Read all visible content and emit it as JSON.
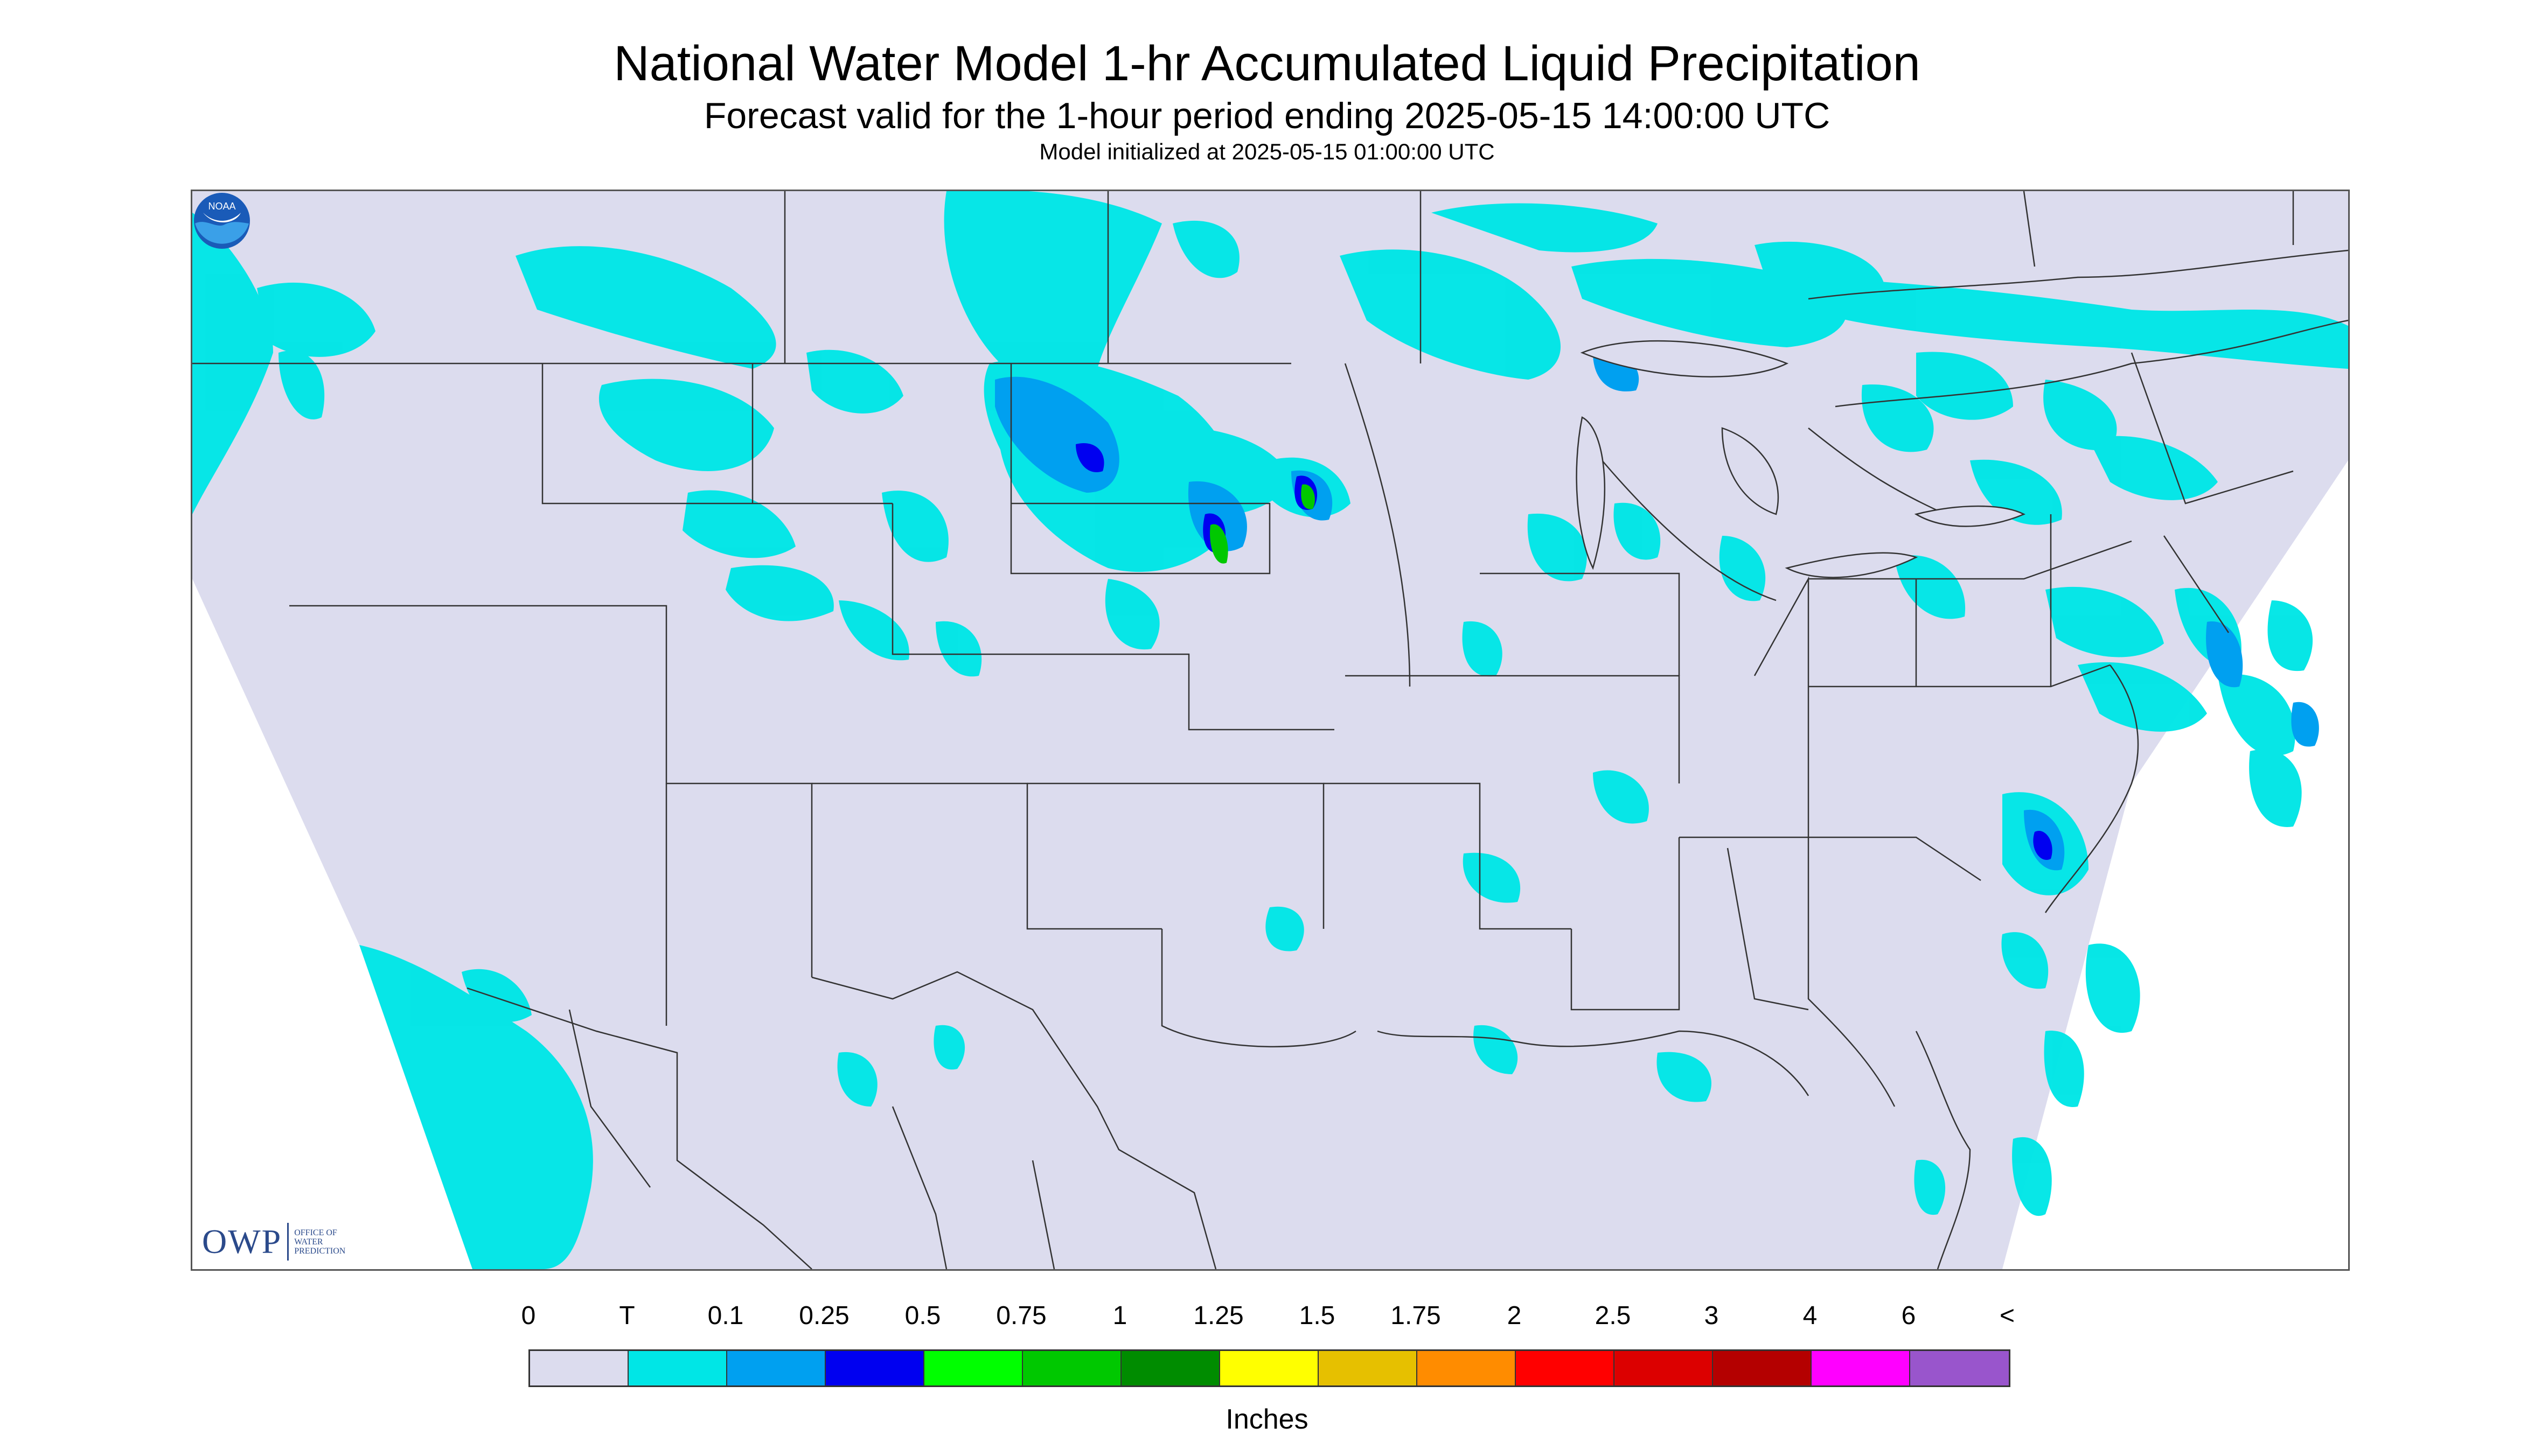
{
  "header": {
    "title": "National Water Model 1-hr Accumulated Liquid Precipitation",
    "subtitle": "Forecast valid for the 1-hour period ending 2025-05-15 14:00:00 UTC",
    "init": "Model initialized at 2025-05-15 01:00:00 UTC"
  },
  "logos": {
    "owp_big": "OWP",
    "owp_small": [
      "OFFICE OF",
      "WATER",
      "PREDICTION"
    ],
    "noaa": "NOAA"
  },
  "legend": {
    "labels": [
      "0",
      "T",
      "0.1",
      "0.25",
      "0.5",
      "0.75",
      "1",
      "1.25",
      "1.5",
      "1.75",
      "2",
      "2.5",
      "3",
      "4",
      "6",
      "<"
    ],
    "colors": [
      "#dcdcee",
      "#00e6e6",
      "#00a0f0",
      "#0000f0",
      "#00ff00",
      "#00c800",
      "#008c00",
      "#ffff00",
      "#e6c000",
      "#ff8c00",
      "#ff0000",
      "#dc0000",
      "#b40000",
      "#ff00ff",
      "#9955cc"
    ],
    "units": "Inches"
  },
  "map_colors": {
    "domain": "#dcdcee",
    "outside": "#ffffff",
    "trace": "#00e6e6",
    "light": "#00a0f0",
    "moderate": "#0000f0",
    "heavy": "#00c800",
    "border": "#333333"
  }
}
